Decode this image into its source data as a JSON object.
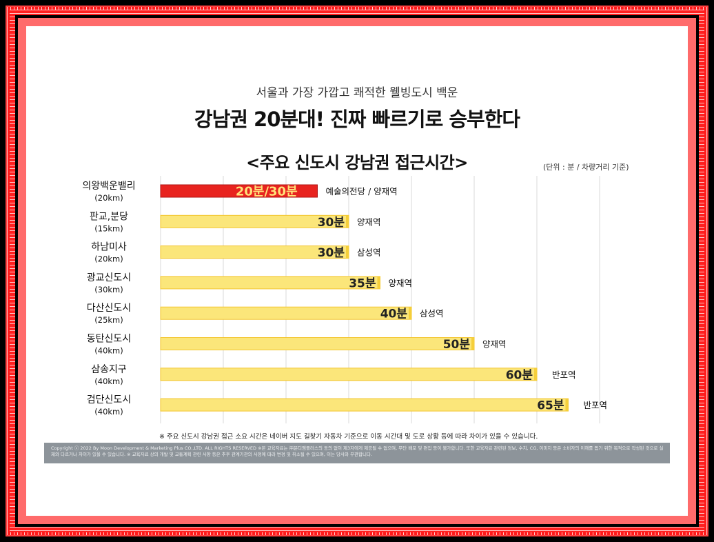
{
  "subtitle": "서울과 가장 가깝고 쾌적한 웰빙도시 백운",
  "title": "강남권 20분대! 진짜 빠르기로 승부한다",
  "unit_note": "(단위 : 분 / 차량거리 기준)",
  "footnote": "※ 주요 신도시 강남권 접근 소요 시간은 네이버 지도 길찾기 자동차 기준으로 이동 시간대 및 도로 상황 등에 따라 차이가 있을 수 있습니다.",
  "copyright": "Copyright ⓒ 2022 By Moon Development & Marketing Plus CO.,LTD. ALL RIGHTS RESERVED  ※본 교육자료는 ㈜문디엠플러스의 동의 없이 제3자에게 제공될 수 없으며, 무단 배포 및 편집 등이 불가합니다. 또한 교육자료 관련된 정보, 수치, CG, 이미지 등은 소비자의 이해를 돕기 위한 목적으로 작성된 것으로 실제와 다르거나 차이가 있을 수 있습니다. ※ 교육자료 상의 개발 및 교통계획 관련 사항 등은 추후 관계기관의 사정에 따라 변경 및 취소될 수 있으며, 이는 당사와 무관합니다.",
  "colors": {
    "highlight_bar": "#e8231f",
    "highlight_text": "#ffe27a",
    "bar": "#fbe67a",
    "bar_border": "#f3c52f",
    "grid": "#d8d8d8",
    "frame": "#ff2020"
  },
  "chart_data": {
    "type": "bar",
    "orientation": "horizontal",
    "title": "<주요  신도시  강남권  접근시간>",
    "unit": "(단위 : 분 / 차량거리 기준)",
    "xlim": [
      0,
      70
    ],
    "grid": true,
    "categories": [
      {
        "name": "의왕백운밸리",
        "distance": "(20km)"
      },
      {
        "name": "판교,분당",
        "distance": "(15km)"
      },
      {
        "name": "하남미사",
        "distance": "(20km)"
      },
      {
        "name": "광교신도시",
        "distance": "(30km)"
      },
      {
        "name": "다산신도시",
        "distance": "(25km)"
      },
      {
        "name": "동탄신도시",
        "distance": "(40km)"
      },
      {
        "name": "삼송지구",
        "distance": "(40km)"
      },
      {
        "name": "검단신도시",
        "distance": "(40km)"
      }
    ],
    "values": [
      25,
      30,
      30,
      35,
      40,
      50,
      60,
      65
    ],
    "value_labels": [
      "20분/30분",
      "30분",
      "30분",
      "35분",
      "40분",
      "50분",
      "60분",
      "65분"
    ],
    "destinations": [
      "예술의전당 / 양재역",
      "양재역",
      "삼성역",
      "양재역",
      "삼성역",
      "양재역",
      "반포역",
      "반포역"
    ],
    "highlight_index": 0
  }
}
